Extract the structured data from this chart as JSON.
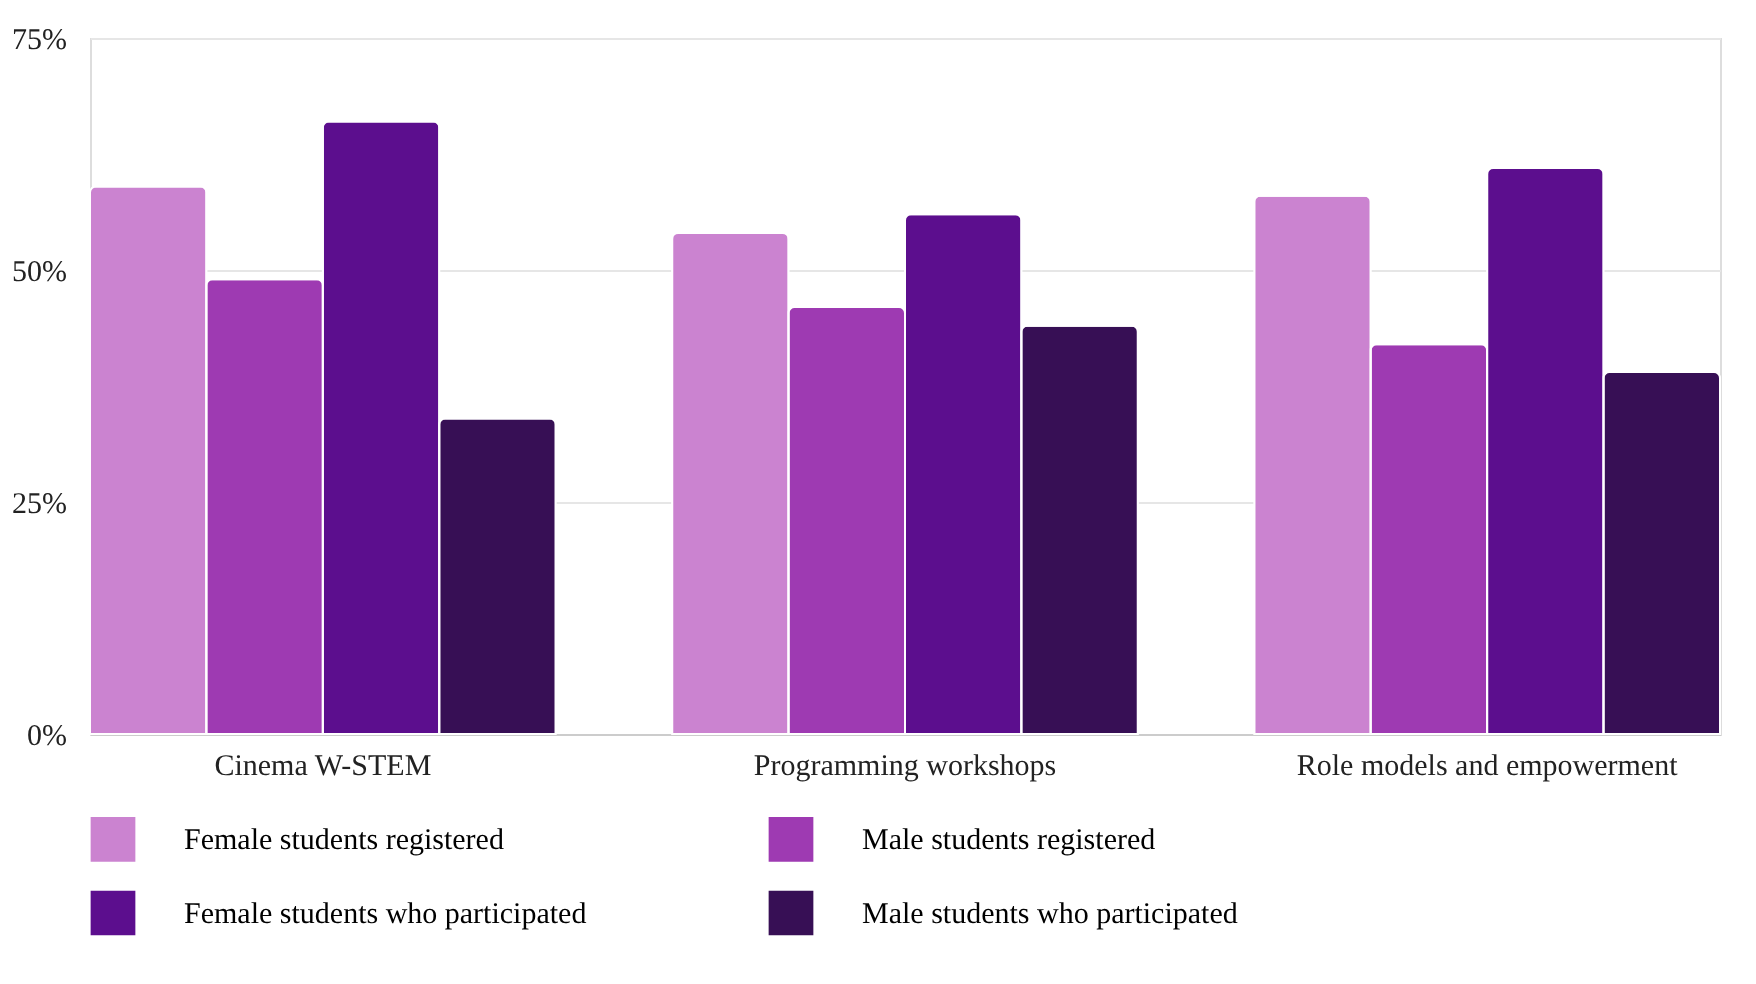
{
  "chart_data": {
    "type": "bar",
    "categories": [
      "Cinema W-STEM",
      "Programming workshops",
      "Role models and empowerment"
    ],
    "series": [
      {
        "name": "Female students registered",
        "color": "#cb83d0",
        "values": [
          59,
          54,
          58
        ]
      },
      {
        "name": "Male students registered",
        "color": "#9e3ab2",
        "values": [
          49,
          46,
          42
        ]
      },
      {
        "name": "Female students who participated",
        "color": "#5c0e8e",
        "values": [
          66,
          56,
          61
        ]
      },
      {
        "name": "Male students who participated",
        "color": "#370f55",
        "values": [
          34,
          44,
          39
        ]
      }
    ],
    "ylim": [
      0,
      75
    ],
    "yticks": [
      {
        "value": 0,
        "label": "0%"
      },
      {
        "value": 25,
        "label": "25%"
      },
      {
        "value": 50,
        "label": "50%"
      },
      {
        "value": 75,
        "label": "75%"
      }
    ],
    "grid": "y",
    "legend": "bottom"
  }
}
